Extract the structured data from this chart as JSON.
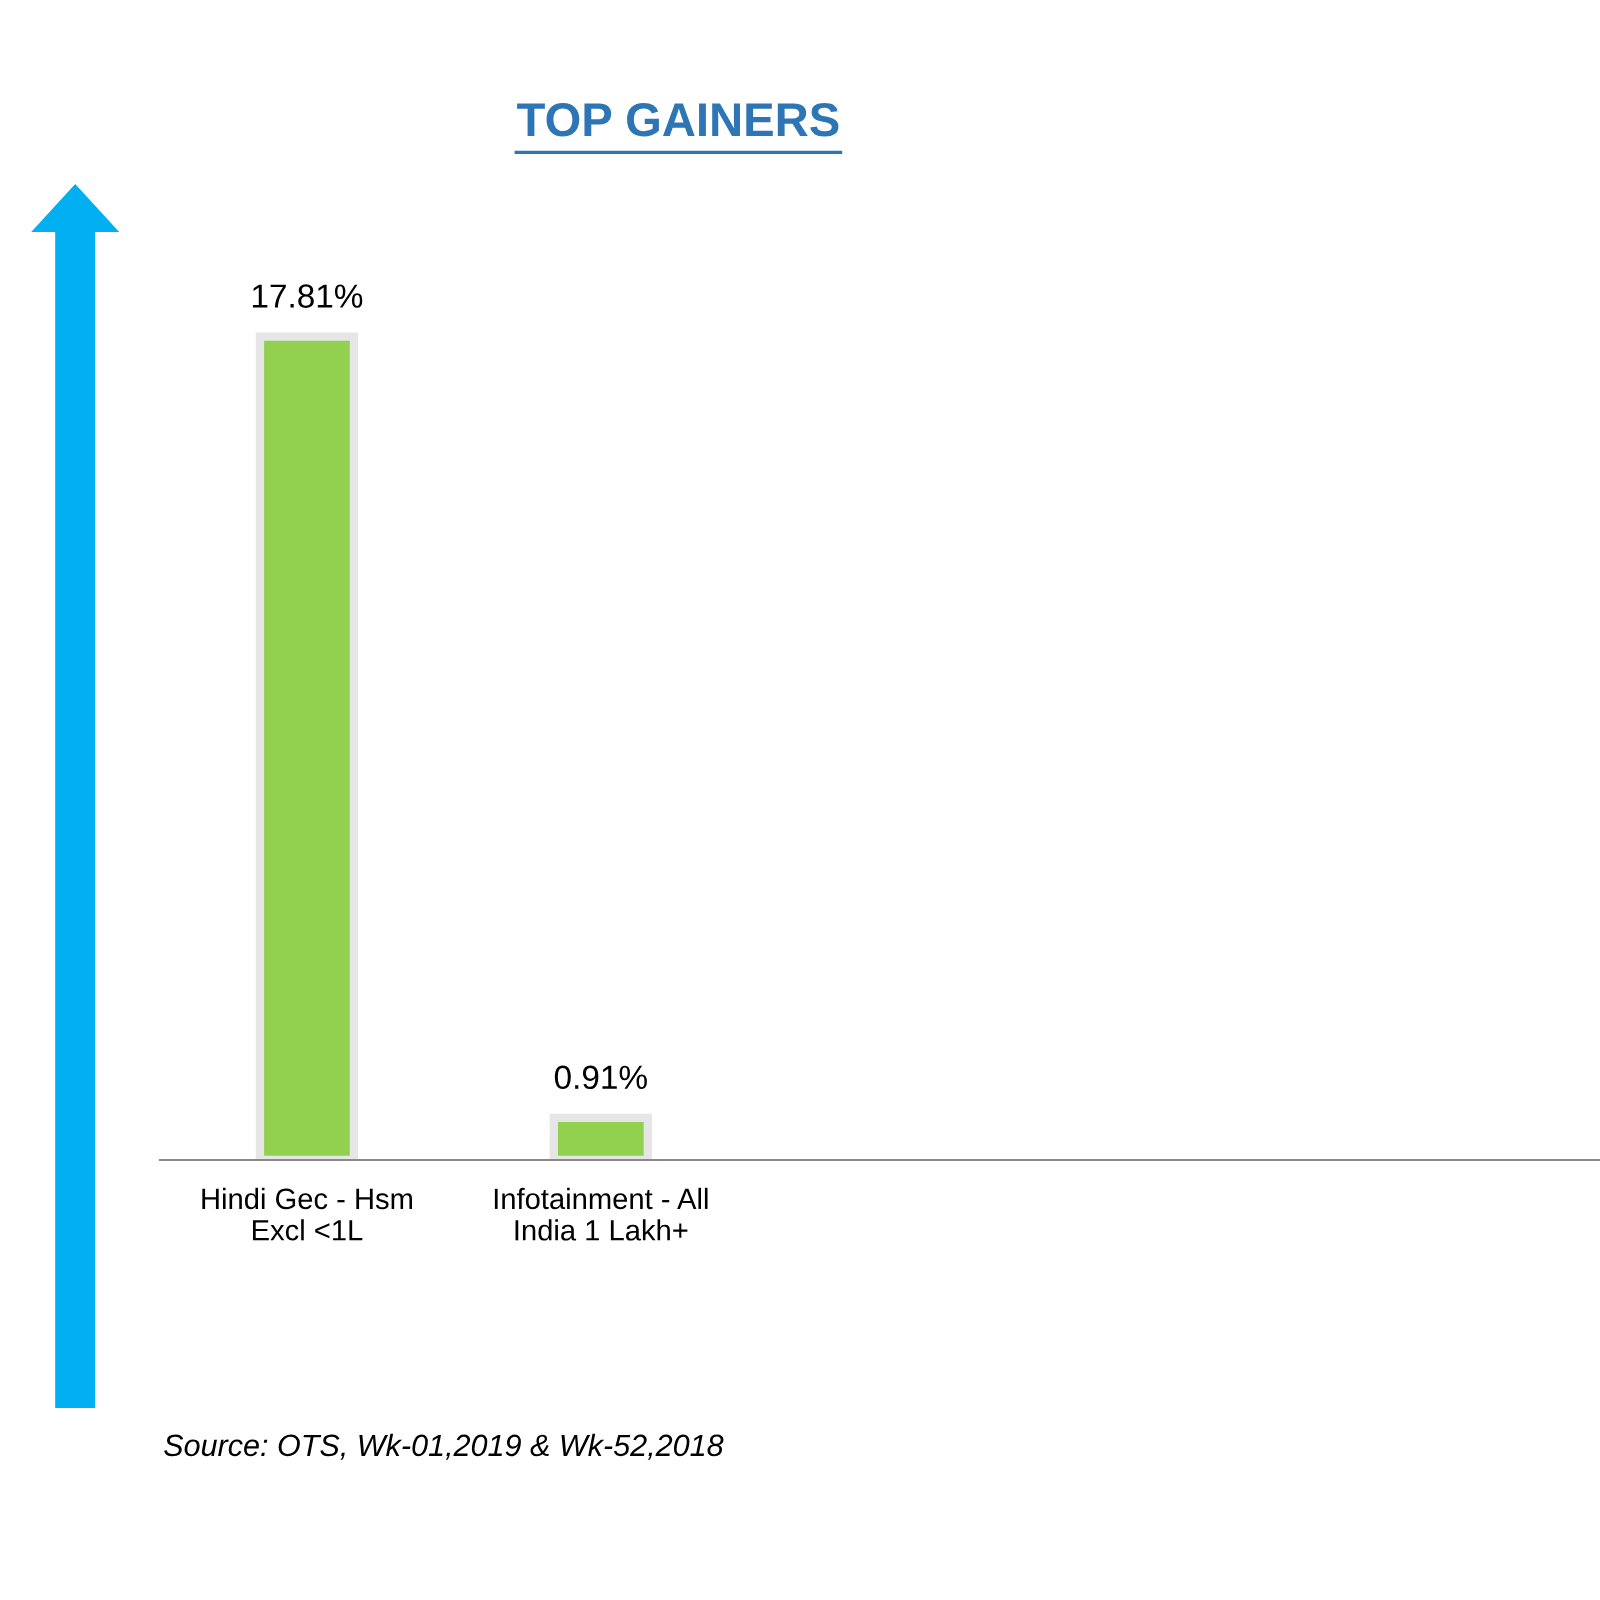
{
  "chart_data": {
    "type": "bar",
    "title": "TOP GAINERS",
    "categories": [
      "Hindi Gec - Hsm\nExcl <1L",
      "Infotainment - All\nIndia 1 Lakh+"
    ],
    "values": [
      17.81,
      0.91
    ],
    "value_labels": [
      "17.81%",
      "0.91%"
    ],
    "color": "#92d050",
    "annotations": [
      "Source: OTS, Wk-01,2019 & Wk-52,2018"
    ]
  }
}
